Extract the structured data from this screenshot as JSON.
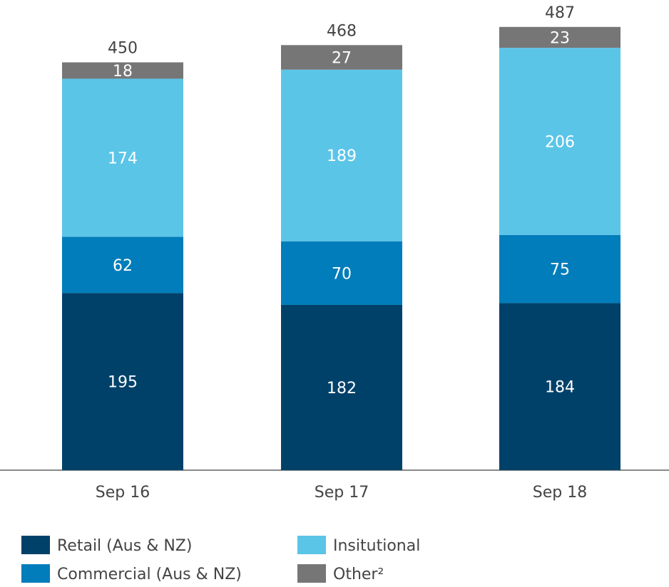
{
  "chart_data": {
    "type": "bar",
    "stacked": true,
    "categories": [
      "Sep 16",
      "Sep 17",
      "Sep 18"
    ],
    "series": [
      {
        "name": "Retail (Aus & NZ)",
        "color": "#00416a",
        "values": [
          195,
          182,
          184
        ]
      },
      {
        "name": "Commercial (Aus & NZ)",
        "color": "#007dba",
        "values": [
          62,
          70,
          75
        ]
      },
      {
        "name": "Insitutional",
        "color": "#5bc5e8",
        "values": [
          174,
          189,
          206
        ]
      },
      {
        "name": "Other²",
        "color": "#767676",
        "values": [
          18,
          27,
          23
        ]
      }
    ],
    "totals": [
      450,
      468,
      487
    ]
  }
}
